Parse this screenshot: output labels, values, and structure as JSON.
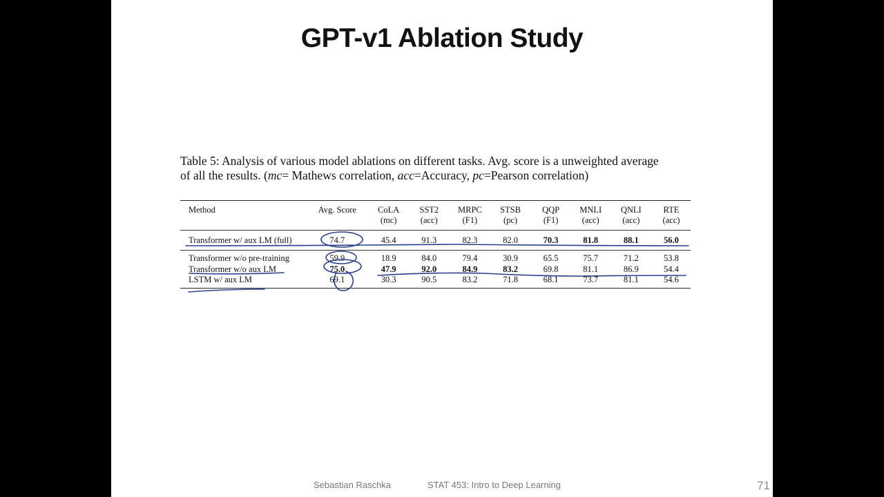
{
  "slide": {
    "title": "GPT-v1 Ablation Study",
    "caption_line1": "Table 5: Analysis of various model ablations on different tasks. Avg. score is a unweighted average",
    "caption_line2_pre": "of all the results. (",
    "caption_mc": "mc",
    "caption_line2_mid1": "= Mathews correlation, ",
    "caption_acc": "acc",
    "caption_line2_mid2": "=Accuracy, ",
    "caption_pc": "pc",
    "caption_line2_post": "=Pearson correlation)",
    "footer_author": "Sebastian Raschka",
    "footer_course": "STAT 453: Intro to Deep Learning",
    "page_number": "71"
  },
  "table": {
    "headers": [
      "Method",
      "Avg. Score",
      "CoLA",
      "SST2",
      "MRPC",
      "STSB",
      "QQP",
      "MNLI",
      "QNLI",
      "RTE"
    ],
    "subheaders": [
      "",
      "",
      "(mc)",
      "(acc)",
      "(F1)",
      "(pc)",
      "(F1)",
      "(acc)",
      "(acc)",
      "(acc)"
    ],
    "rows": [
      {
        "cells": [
          "Transformer w/ aux LM (full)",
          "74.7",
          "45.4",
          "91.3",
          "82.3",
          "82.0",
          "70.3",
          "81.8",
          "88.1",
          "56.0"
        ],
        "bold": [
          6,
          7,
          8,
          9
        ]
      },
      {
        "cells": [
          "Transformer w/o pre-training",
          "59.9",
          "18.9",
          "84.0",
          "79.4",
          "30.9",
          "65.5",
          "75.7",
          "71.2",
          "53.8"
        ],
        "bold": []
      },
      {
        "cells": [
          "Transformer w/o aux LM",
          "75.0",
          "47.9",
          "92.0",
          "84.9",
          "83.2",
          "69.8",
          "81.1",
          "86.9",
          "54.4"
        ],
        "bold": [
          1,
          2,
          3,
          4,
          5
        ]
      },
      {
        "cells": [
          "LSTM w/ aux LM",
          "69.1",
          "30.3",
          "90.5",
          "83.2",
          "71.8",
          "68.1",
          "73.7",
          "81.1",
          "54.6"
        ],
        "bold": []
      }
    ]
  },
  "colors": {
    "annotation_ink": "#2b3f8f",
    "background": "#000000",
    "slide": "#ffffff",
    "footer_text": "#777777"
  }
}
